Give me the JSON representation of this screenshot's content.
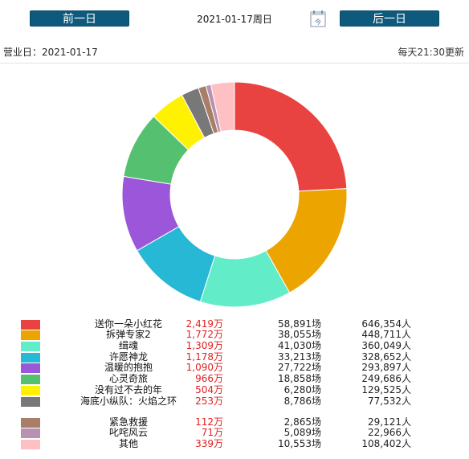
{
  "header": {
    "prev_label": "前一日",
    "next_label": "后一日",
    "date_title": "2021-01-17周日",
    "calendar_icon": "calendar-icon"
  },
  "info": {
    "business_day": "营业日：2021-01-17",
    "update_note": "每天21:30更新"
  },
  "chart_data": {
    "type": "pie",
    "variant": "donut",
    "legend": "bottom",
    "categories": [
      "送你一朵小红花",
      "拆弹专家2",
      "缉魂",
      "许愿神龙",
      "温暖的抱抱",
      "心灵奇旅",
      "没有过不去的年",
      "海底小纵队：火焰之环",
      "紧急救援",
      "叱咤风云",
      "其他"
    ],
    "box_office": [
      "2,419万",
      "1,772万",
      "1,309万",
      "1,178万",
      "1,090万",
      "966万",
      "504万",
      "253万",
      "112万",
      "71万",
      "339万"
    ],
    "values": [
      2419,
      1772,
      1309,
      1178,
      1090,
      966,
      504,
      253,
      112,
      71,
      339
    ],
    "sessions": [
      "58,891场",
      "38,055场",
      "41,030场",
      "33,213场",
      "27,722场",
      "18,858场",
      "6,280场",
      "8,786场",
      "2,865场",
      "5,089场",
      "10,553场"
    ],
    "audience": [
      "646,354人",
      "448,711人",
      "360,049人",
      "328,652人",
      "293,897人",
      "249,686人",
      "129,525人",
      "77,532人",
      "29,121人",
      "22,966人",
      "108,402人"
    ],
    "colors": [
      "#e84340",
      "#eca400",
      "#63ecc8",
      "#27b8d5",
      "#9c56d9",
      "#54c070",
      "#fff200",
      "#787878",
      "#a97e68",
      "#b890b0",
      "#ffc0c4"
    ]
  }
}
